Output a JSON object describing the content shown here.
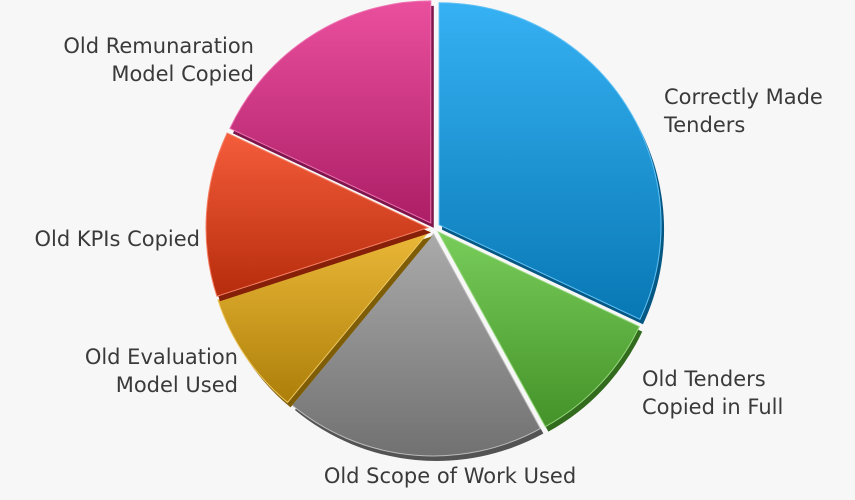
{
  "chart_data": {
    "type": "pie",
    "title": "",
    "slices": [
      {
        "name": "Correctly Made Tenders",
        "label_lines": [
          "Correctly Made",
          "Tenders"
        ],
        "value": 32,
        "color": "#0aa0f0"
      },
      {
        "name": "Old Tenders Copied in Full",
        "label_lines": [
          "Old Tenders",
          "Copied in Full"
        ],
        "value": 10,
        "color": "#5ac236"
      },
      {
        "name": "Old Scope of Work Used",
        "label_lines": [
          "Old Scope of Work Used"
        ],
        "value": 19,
        "color": "#979797"
      },
      {
        "name": "Old Evaluation Model Used",
        "label_lines": [
          "Old Evaluation",
          "Model Used"
        ],
        "value": 9,
        "color": "#e6a90c"
      },
      {
        "name": "Old KPIs Copied",
        "label_lines": [
          "Old KPIs Copied"
        ],
        "value": 12,
        "color": "#f33a10"
      },
      {
        "name": "Old Remunaration Model Copied",
        "label_lines": [
          "Old Remunaration",
          "Model Copied"
        ],
        "value": 18,
        "color": "#e52888"
      }
    ]
  }
}
